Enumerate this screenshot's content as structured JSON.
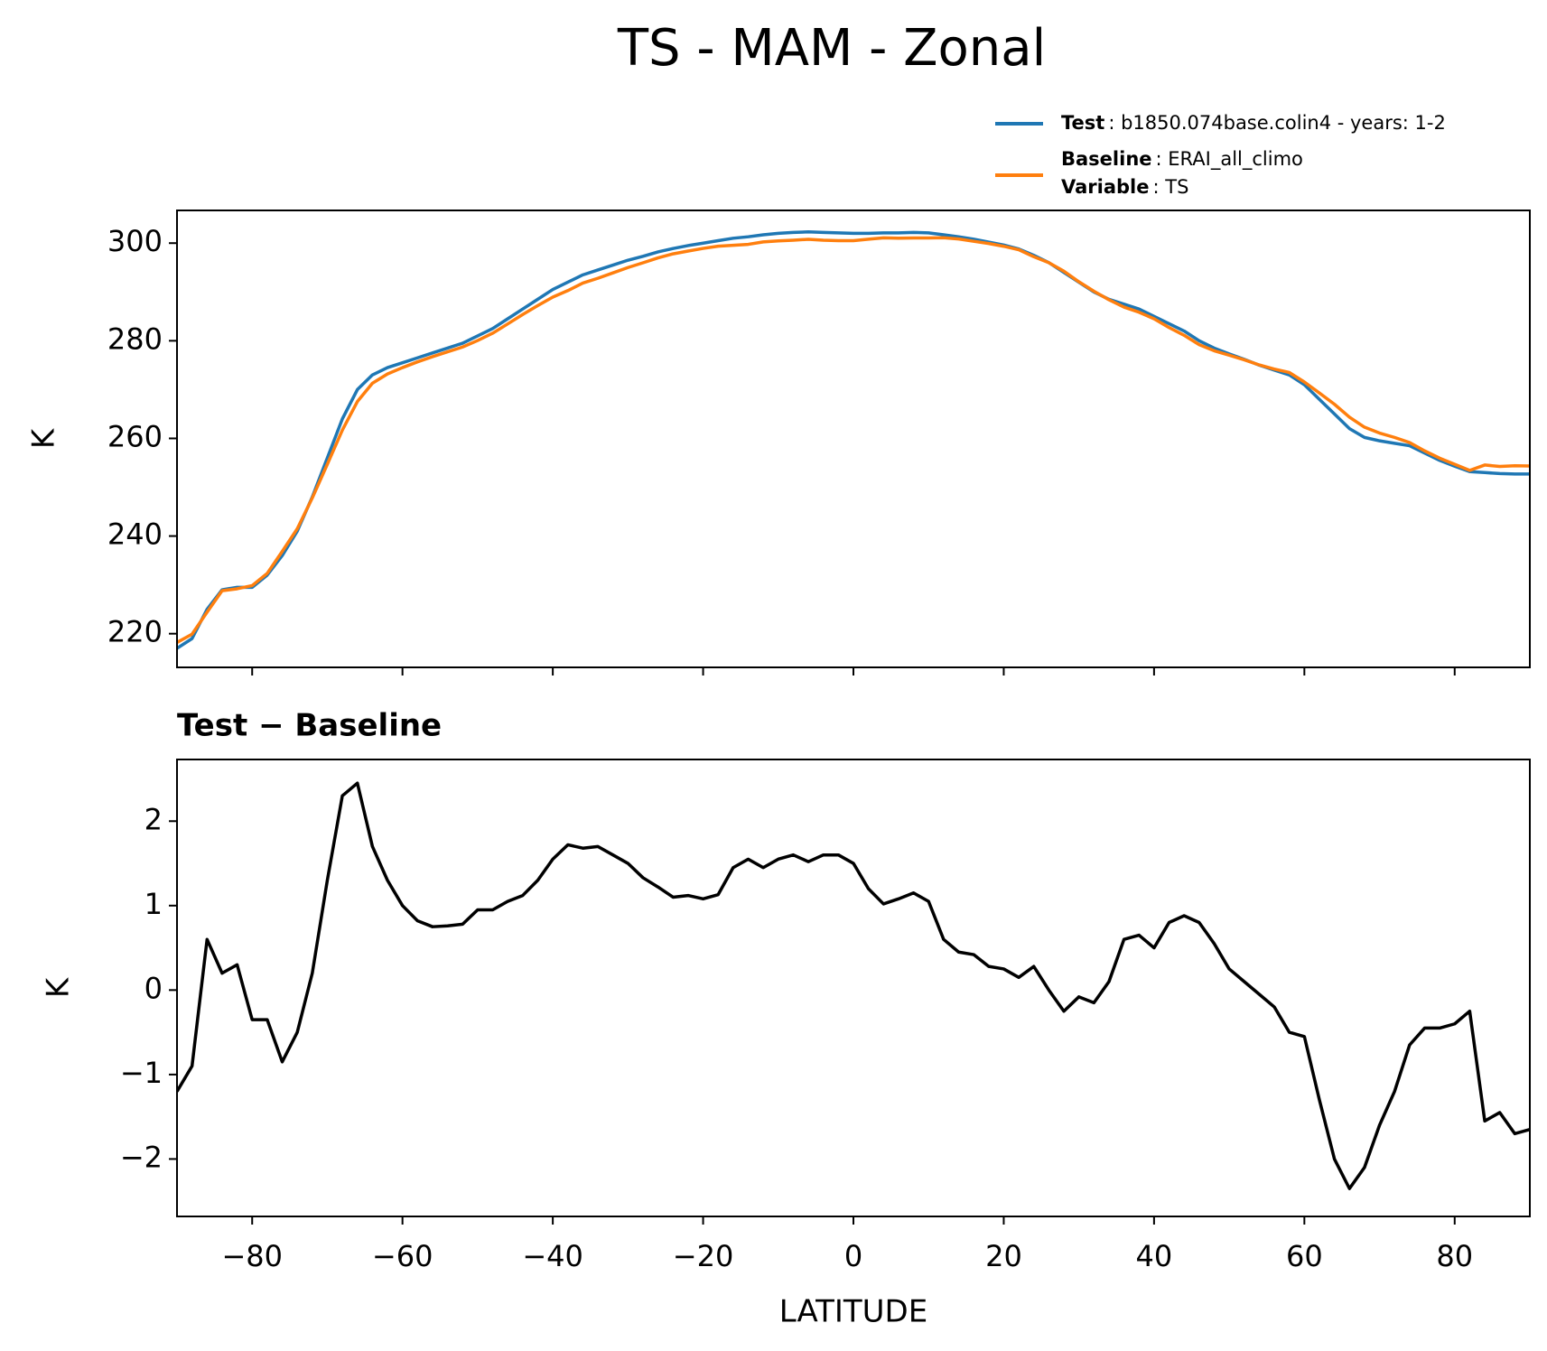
{
  "chart_data": [
    {
      "type": "line",
      "title": "TS - MAM - Zonal",
      "ylabel": "K",
      "x": [
        -90,
        -88,
        -86,
        -84,
        -82,
        -80,
        -78,
        -76,
        -74,
        -72,
        -70,
        -68,
        -66,
        -64,
        -62,
        -60,
        -58,
        -56,
        -54,
        -52,
        -50,
        -48,
        -46,
        -44,
        -42,
        -40,
        -38,
        -36,
        -34,
        -32,
        -30,
        -28,
        -26,
        -24,
        -22,
        -20,
        -18,
        -16,
        -14,
        -12,
        -10,
        -8,
        -6,
        -4,
        -2,
        0,
        2,
        4,
        6,
        8,
        10,
        12,
        14,
        16,
        18,
        20,
        22,
        24,
        26,
        28,
        30,
        32,
        34,
        36,
        38,
        40,
        42,
        44,
        46,
        48,
        50,
        52,
        54,
        56,
        58,
        60,
        62,
        64,
        66,
        68,
        70,
        72,
        74,
        76,
        78,
        80,
        82,
        84,
        86,
        88,
        90
      ],
      "series": [
        {
          "name": "Test",
          "label": ": b1850.074base.colin4 - years: 1-2",
          "color": "#1f77b4",
          "values": [
            217,
            219,
            225,
            229,
            229.5,
            229.5,
            232,
            236,
            241,
            248,
            256,
            264,
            270,
            273,
            274.5,
            275.5,
            276.5,
            277.5,
            278.5,
            279.5,
            281,
            282.5,
            284.5,
            286.5,
            288.5,
            290.5,
            292,
            293.5,
            294.5,
            295.5,
            296.5,
            297.3,
            298.2,
            298.9,
            299.5,
            300,
            300.5,
            301,
            301.3,
            301.7,
            302,
            302.2,
            302.3,
            302.2,
            302.1,
            302,
            302,
            302.1,
            302.1,
            302.2,
            302.1,
            301.7,
            301.3,
            300.8,
            300.2,
            299.6,
            298.8,
            297.5,
            296,
            294,
            292,
            290,
            288.5,
            287.5,
            286.5,
            285,
            283.5,
            282,
            280,
            278.5,
            277.3,
            276.2,
            275,
            274,
            273,
            271,
            268,
            265,
            262,
            260.2,
            259.5,
            259,
            258.5,
            257,
            255.5,
            254.3,
            253.2,
            253,
            252.8,
            252.7,
            252.7
          ]
        },
        {
          "name": "Baseline",
          "label": ": ERAI_all_climo",
          "color": "#ff7f0e",
          "values": [
            218.2,
            219.9,
            224.4,
            228.8,
            229.2,
            229.85,
            232.35,
            236.85,
            241.5,
            247.8,
            254.7,
            261.7,
            267.55,
            271.3,
            273.2,
            274.5,
            275.68,
            276.75,
            277.74,
            278.72,
            280.05,
            281.55,
            283.45,
            285.38,
            287.2,
            288.95,
            290.28,
            291.82,
            292.8,
            293.9,
            295,
            295.97,
            296.98,
            297.8,
            298.38,
            298.92,
            299.37,
            299.55,
            299.75,
            300.25,
            300.45,
            300.6,
            300.78,
            300.6,
            300.5,
            300.5,
            300.8,
            301.08,
            301.02,
            301.05,
            301.05,
            301.1,
            300.85,
            300.38,
            299.92,
            299.35,
            298.65,
            297.22,
            296,
            294.25,
            292.08,
            290.15,
            288.4,
            286.9,
            285.85,
            284.5,
            282.7,
            281.12,
            279.2,
            277.95,
            277.05,
            276.1,
            275.05,
            274.2,
            273.5,
            271.55,
            269.3,
            267,
            264.35,
            262.3,
            261.1,
            260.2,
            259.15,
            257.45,
            255.95,
            254.7,
            253.45,
            254.55,
            254.25,
            254.4,
            254.35
          ]
        }
      ],
      "legend_extra": {
        "name": "Variable",
        "label": ": TS"
      },
      "xlim": [
        -90,
        90
      ],
      "xticks": [
        -80,
        -60,
        -40,
        -20,
        0,
        20,
        40,
        60,
        80
      ],
      "xtick_labels": false,
      "ylim": [
        213.1,
        306.7
      ],
      "yticks": [
        220,
        240,
        260,
        280,
        300
      ]
    },
    {
      "type": "line",
      "title": "Test − Baseline",
      "ylabel": "K",
      "xlabel": "LATITUDE",
      "x": [
        -90,
        -88,
        -86,
        -84,
        -82,
        -80,
        -78,
        -76,
        -74,
        -72,
        -70,
        -68,
        -66,
        -64,
        -62,
        -60,
        -58,
        -56,
        -54,
        -52,
        -50,
        -48,
        -46,
        -44,
        -42,
        -40,
        -38,
        -36,
        -34,
        -32,
        -30,
        -28,
        -26,
        -24,
        -22,
        -20,
        -18,
        -16,
        -14,
        -12,
        -10,
        -8,
        -6,
        -4,
        -2,
        0,
        2,
        4,
        6,
        8,
        10,
        12,
        14,
        16,
        18,
        20,
        22,
        24,
        26,
        28,
        30,
        32,
        34,
        36,
        38,
        40,
        42,
        44,
        46,
        48,
        50,
        52,
        54,
        56,
        58,
        60,
        62,
        64,
        66,
        68,
        70,
        72,
        74,
        76,
        78,
        80,
        82,
        84,
        86,
        88,
        90
      ],
      "series": [
        {
          "color": "#000000",
          "values": [
            -1.2,
            -0.9,
            0.6,
            0.2,
            0.3,
            -0.35,
            -0.35,
            -0.85,
            -0.5,
            0.2,
            1.3,
            2.3,
            2.45,
            1.7,
            1.3,
            1.0,
            0.82,
            0.75,
            0.76,
            0.78,
            0.95,
            0.95,
            1.05,
            1.12,
            1.3,
            1.55,
            1.72,
            1.68,
            1.7,
            1.6,
            1.5,
            1.33,
            1.22,
            1.1,
            1.12,
            1.08,
            1.13,
            1.45,
            1.55,
            1.45,
            1.55,
            1.6,
            1.52,
            1.6,
            1.6,
            1.5,
            1.2,
            1.02,
            1.08,
            1.15,
            1.05,
            0.6,
            0.45,
            0.42,
            0.28,
            0.25,
            0.15,
            0.28,
            0.0,
            -0.25,
            -0.08,
            -0.15,
            0.1,
            0.6,
            0.65,
            0.5,
            0.8,
            0.88,
            0.8,
            0.55,
            0.25,
            0.1,
            -0.05,
            -0.2,
            -0.5,
            -0.55,
            -1.3,
            -2.0,
            -2.35,
            -2.1,
            -1.6,
            -1.2,
            -0.65,
            -0.45,
            -0.45,
            -0.4,
            -0.25,
            -1.55,
            -1.45,
            -1.7,
            -1.65
          ]
        }
      ],
      "xlim": [
        -90,
        90
      ],
      "xticks": [
        {
          "value": -80,
          "label": "−80"
        },
        {
          "value": -60,
          "label": "−60"
        },
        {
          "value": -40,
          "label": "−40"
        },
        {
          "value": -20,
          "label": "−20"
        },
        0,
        20,
        40,
        60,
        80
      ],
      "ylim": [
        -2.68,
        2.73
      ],
      "yticks": [
        {
          "value": -2,
          "label": "−2"
        },
        {
          "value": -1,
          "label": "−1"
        },
        0,
        1,
        2
      ]
    }
  ]
}
